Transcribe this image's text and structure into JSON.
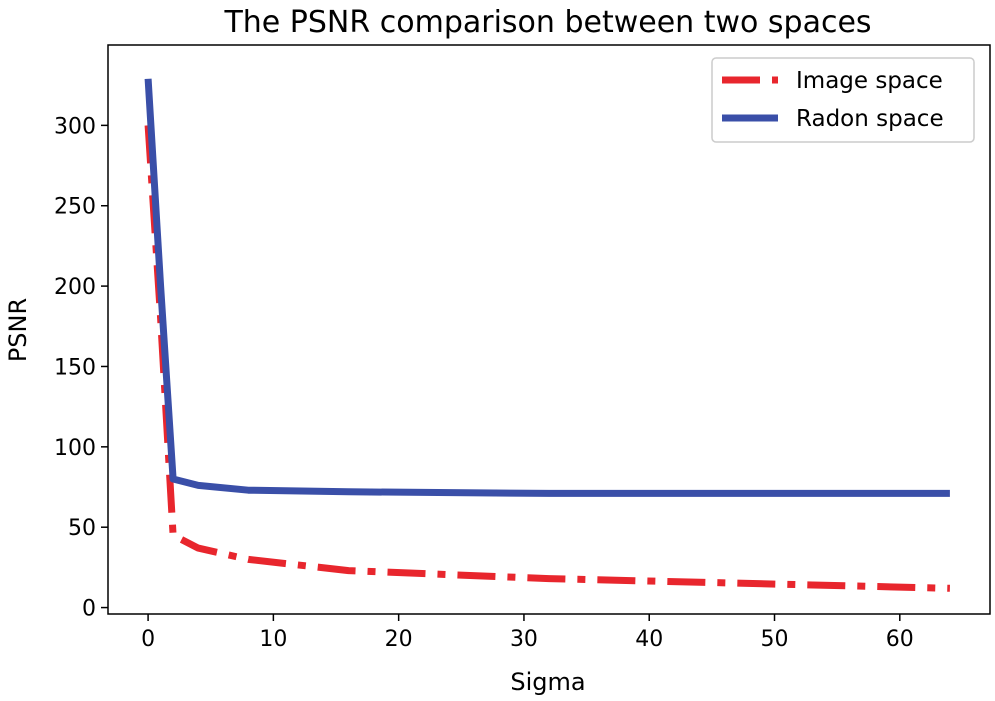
{
  "chart_data": {
    "type": "line",
    "title": "The PSNR comparison between two spaces",
    "xlabel": "Sigma",
    "ylabel": "PSNR",
    "xlim": [
      -3.2,
      67.2
    ],
    "ylim": [
      -4,
      350
    ],
    "xticks": [
      0,
      10,
      20,
      30,
      40,
      50,
      60
    ],
    "yticks": [
      0,
      50,
      100,
      150,
      200,
      250,
      300
    ],
    "legend_position": "top-right",
    "grid": false,
    "series": [
      {
        "name": "Image space",
        "color": "#e8262d",
        "linestyle": "dashdot",
        "x": [
          0,
          1,
          2,
          4,
          8,
          16,
          32,
          64
        ],
        "y": [
          300,
          180,
          45,
          37,
          30,
          23,
          18,
          12
        ]
      },
      {
        "name": "Radon space",
        "color": "#3a4fa8",
        "linestyle": "solid",
        "x": [
          0,
          1,
          2,
          4,
          8,
          16,
          32,
          64
        ],
        "y": [
          329,
          200,
          80,
          76,
          73,
          72,
          71,
          71
        ]
      }
    ]
  }
}
